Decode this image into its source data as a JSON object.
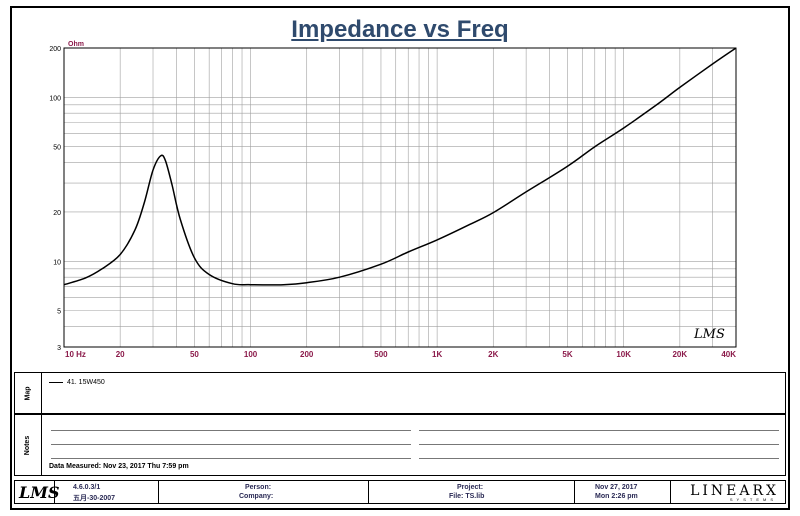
{
  "title": "Impedance vs Freq",
  "chart_data": {
    "type": "line",
    "title": "Impedance vs Freq",
    "ylabel": "Ohm",
    "xscale": "log",
    "yscale": "log",
    "xlim": [
      10,
      40000
    ],
    "ylim": [
      3,
      200
    ],
    "grid": true,
    "x_tick_labels": [
      "10  Hz",
      "20",
      "50",
      "100",
      "200",
      "500",
      "1K",
      "2K",
      "5K",
      "10K",
      "20K",
      "40K"
    ],
    "x_tick_values": [
      10,
      20,
      50,
      100,
      200,
      500,
      1000,
      2000,
      5000,
      10000,
      20000,
      40000
    ],
    "y_tick_labels": [
      "200",
      "100",
      "50",
      "20",
      "10",
      "5",
      "3"
    ],
    "y_tick_values": [
      200,
      100,
      50,
      20,
      10,
      5,
      3
    ],
    "series": [
      {
        "name": "41. 15W450",
        "x": [
          10,
          13,
          16,
          20,
          24,
          27,
          30,
          33,
          35,
          38,
          42,
          50,
          60,
          80,
          100,
          150,
          200,
          300,
          500,
          700,
          1000,
          1500,
          2000,
          3000,
          5000,
          7000,
          10000,
          15000,
          20000,
          30000,
          40000
        ],
        "y": [
          7.2,
          7.9,
          9.0,
          11.0,
          15.5,
          23,
          36,
          44,
          41,
          29,
          18,
          10.5,
          8.3,
          7.3,
          7.2,
          7.2,
          7.4,
          8.0,
          9.6,
          11.4,
          13.5,
          16.8,
          19.8,
          26.5,
          38,
          50,
          65,
          90,
          115,
          160,
          200
        ]
      }
    ]
  },
  "logo_text": "LMS",
  "map_panel": {
    "tab_label": "Map",
    "legend": "41. 15W450"
  },
  "notes_panel": {
    "tab_label": "Notes",
    "data_measured": "Data Measured: Nov 23, 2017  Thu  7:59 pm"
  },
  "footer": {
    "version": "4.6.0.3/1",
    "build": "五月-30-2007",
    "person": "Person:",
    "company": "Company:",
    "project": "Project:",
    "file": "File: TS.lib",
    "date": "Nov 27, 2017",
    "time": "Mon  2:26 pm",
    "brand": "LINEARX",
    "brand_sub": "SYSTEMS"
  },
  "colors": {
    "title": "#2f4a6d",
    "tick_labels": "#8b1a4a",
    "grid": "#a0a0a0",
    "curve": "#000000"
  }
}
